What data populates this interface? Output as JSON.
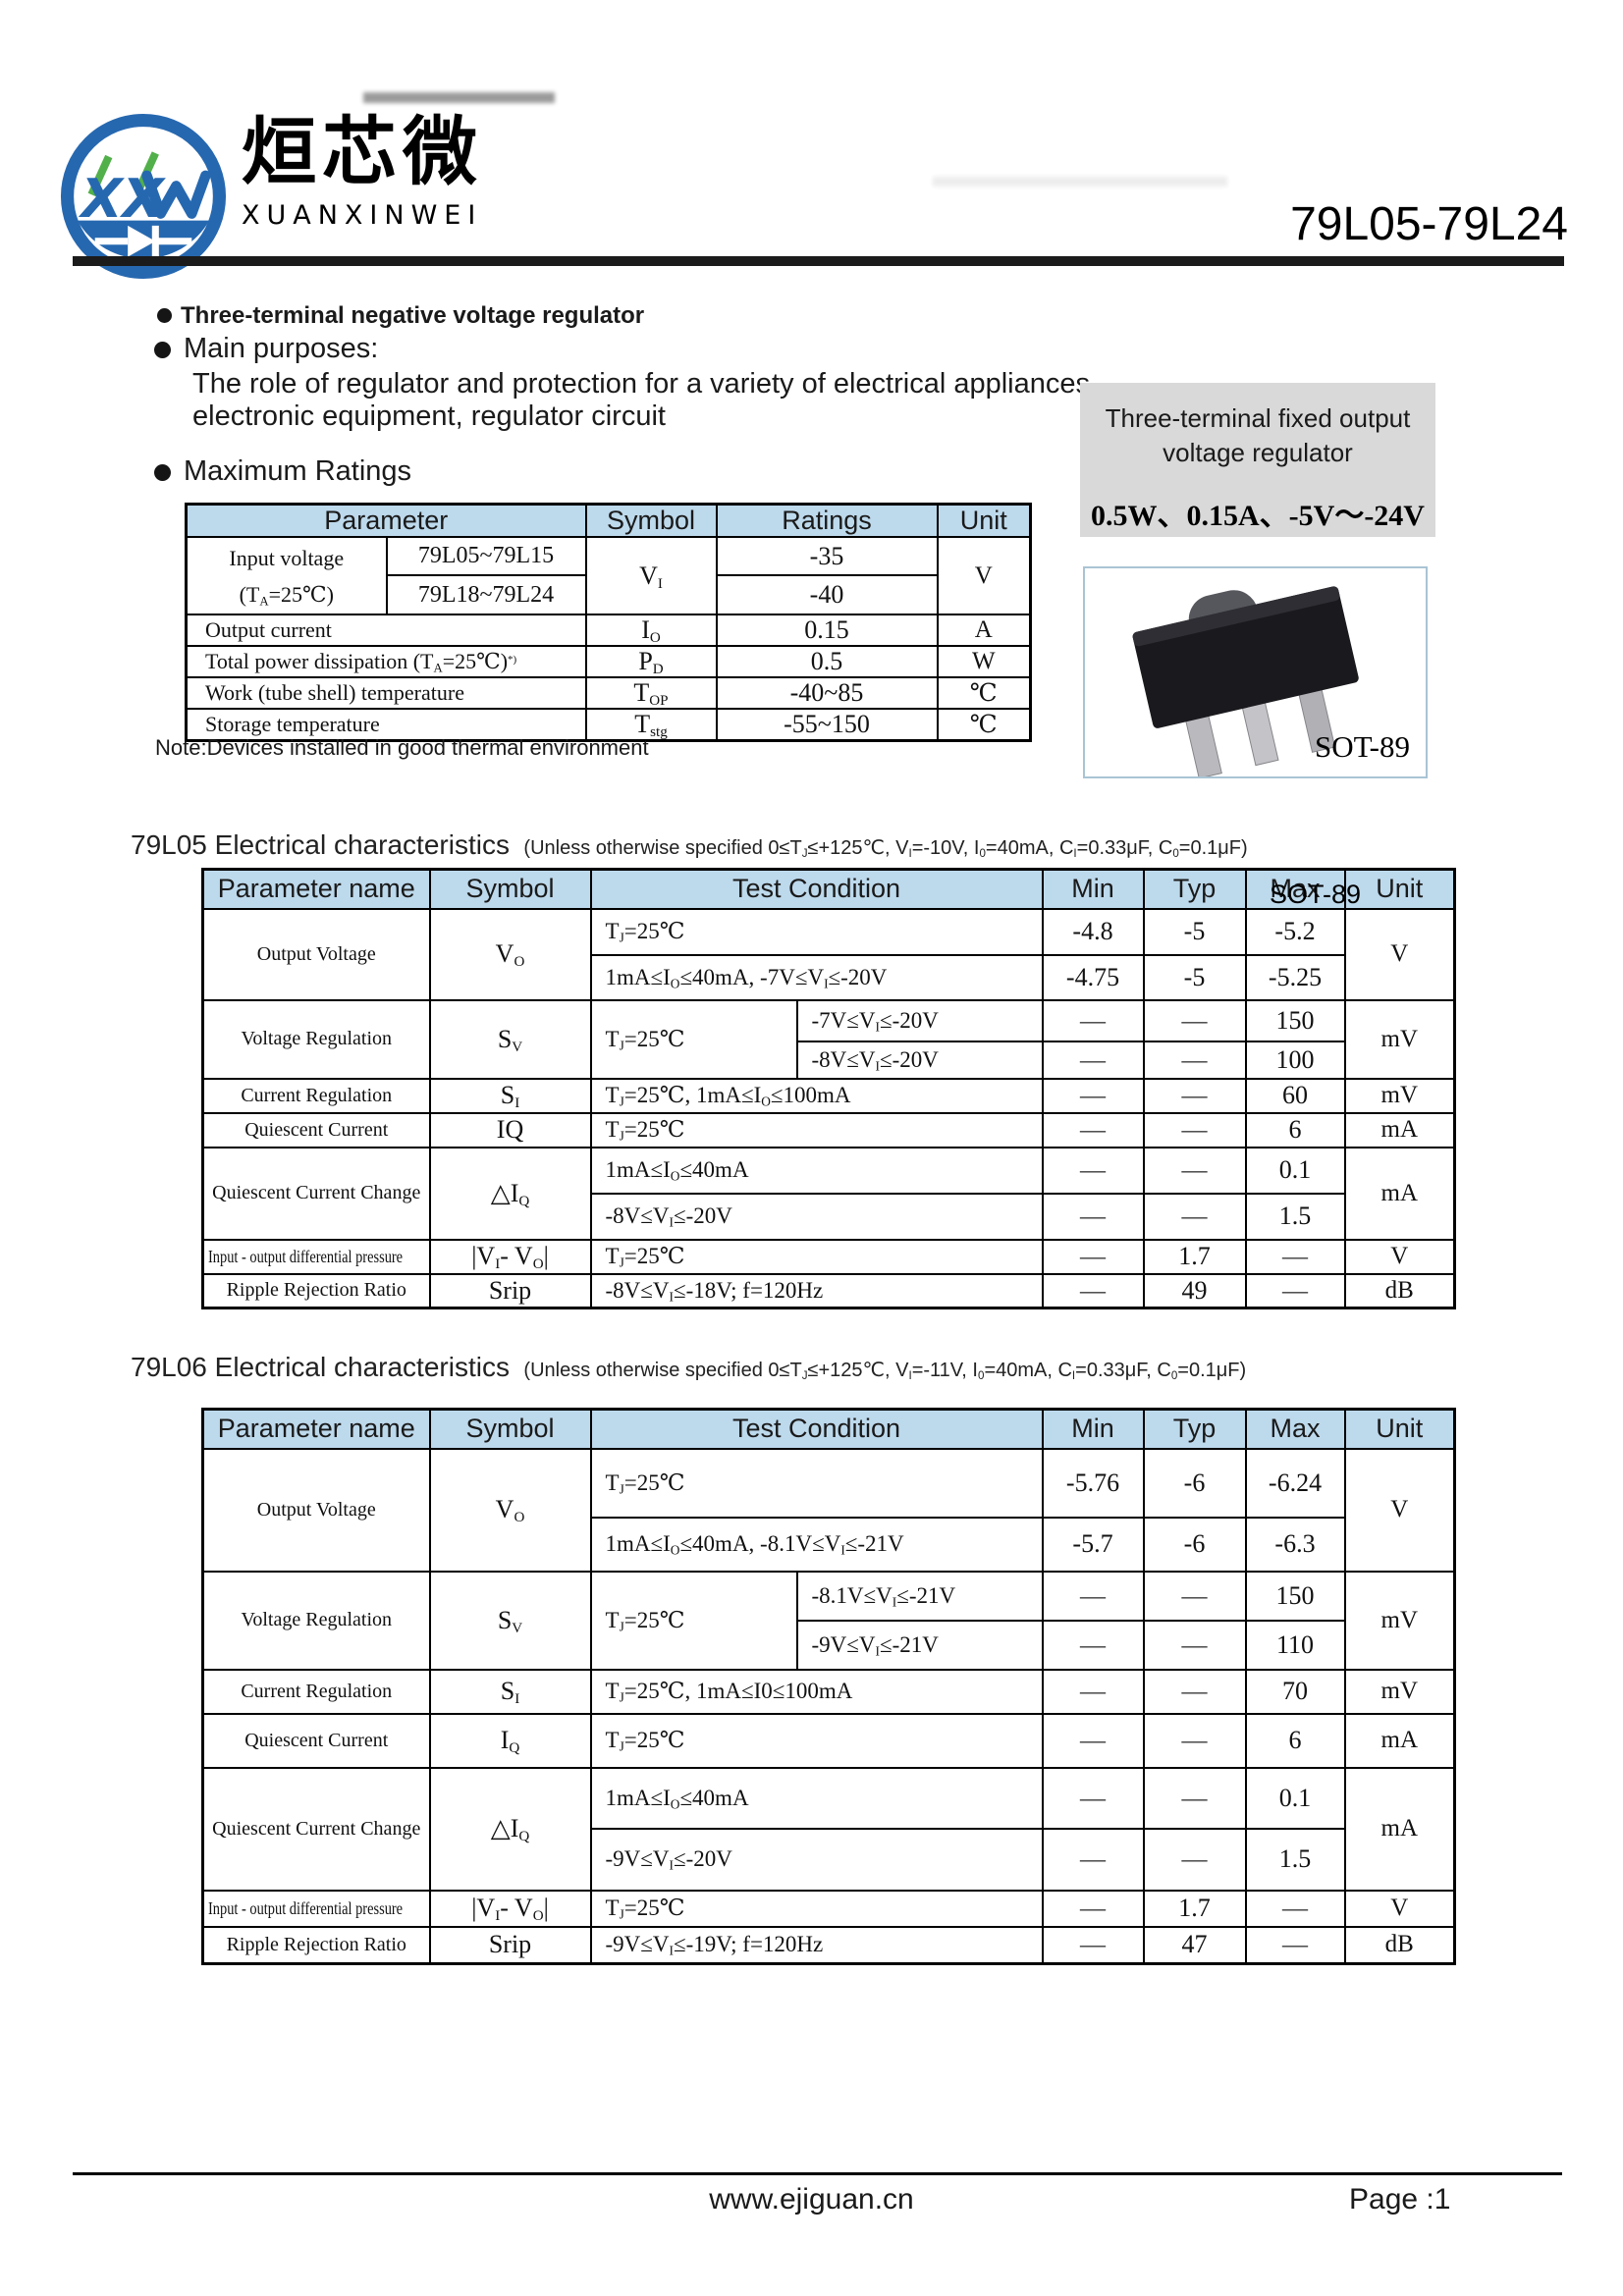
{
  "header": {
    "logo_text": "XXW",
    "brand_cn": "烜芯微",
    "brand_en": "XUANXINWEI",
    "part_number": "79L05-79L24"
  },
  "intro": {
    "feature": "Three-terminal negative voltage regulator",
    "purpose_title": "Main purposes:",
    "purpose_line1": "The role of regulator and protection for a variety of electrical appliances,",
    "purpose_line2": "electronic equipment, regulator circuit",
    "ratings_title": "Maximum Ratings"
  },
  "side_panel": {
    "line1": "Three-terminal fixed output",
    "line2": "voltage regulator",
    "specs": "0.5W、0.15A、-5V～-24V",
    "package": "SOT-89"
  },
  "colors": {
    "table_header_bg": "#bdd9ec",
    "panel_bg": "#d9d9d9",
    "logo_blue": "#2668b0",
    "logo_green": "#52b04a"
  },
  "max_ratings": {
    "headers": {
      "param": "Parameter",
      "symbol": "Symbol",
      "ratings": "Ratings",
      "unit": "Unit"
    },
    "input_voltage": {
      "name_line1": "Input voltage",
      "name_line2": [
        {
          "t": "(T"
        },
        {
          "s": "A"
        },
        {
          "t": "=25℃)"
        }
      ],
      "range1": "79L05~79L15",
      "range2": "79L18~79L24",
      "symbol": [
        {
          "t": "V"
        },
        {
          "s": "I"
        }
      ],
      "rating1": "-35",
      "rating2": "-40",
      "unit": "V"
    },
    "output_current": {
      "name": "Output current",
      "symbol": [
        {
          "t": "I"
        },
        {
          "s": "O"
        }
      ],
      "rating": "0.15",
      "unit": "A"
    },
    "power_dissipation": {
      "name": [
        {
          "t": "Total power dissipation (T"
        },
        {
          "s": "A"
        },
        {
          "t": "=25℃)"
        },
        {
          "p": "*)"
        }
      ],
      "symbol": [
        {
          "t": "P"
        },
        {
          "s": "D"
        }
      ],
      "rating": "0.5",
      "unit": "W"
    },
    "work_temperature": {
      "name": "Work (tube shell) temperature",
      "symbol": [
        {
          "t": "T"
        },
        {
          "s": "OP"
        }
      ],
      "rating": "-40~85",
      "unit": "℃"
    },
    "storage_temperature": {
      "name": "Storage temperature",
      "symbol": [
        {
          "t": "T"
        },
        {
          "s": "stg"
        }
      ],
      "rating": "-55~150",
      "unit": "℃"
    },
    "note": "Note:Devices installed in good thermal environment"
  },
  "t05": {
    "title": "79L05 Electrical characteristics",
    "condition": [
      {
        "t": "(Unless otherwise specified  0≤T"
      },
      {
        "s": "J"
      },
      {
        "t": "≤+125℃, V"
      },
      {
        "s": "I"
      },
      {
        "t": "=-10V, I"
      },
      {
        "s": "0"
      },
      {
        "t": "=40mA, C"
      },
      {
        "s": "I"
      },
      {
        "t": "=0.33μF, C"
      },
      {
        "s": "0"
      },
      {
        "t": "=0.1μF)"
      }
    ],
    "overlay": "SOT-89",
    "headers": {
      "param": "Parameter name",
      "symbol": "Symbol",
      "cond": "Test Condition",
      "min": "Min",
      "typ": "Typ",
      "max": "Max",
      "unit": "Unit"
    },
    "output_voltage": {
      "name": "Output Voltage",
      "symbol": [
        {
          "t": "V"
        },
        {
          "s": "O"
        }
      ],
      "r1": {
        "cond": [
          {
            "t": "T"
          },
          {
            "s": "J"
          },
          {
            "t": "=25℃"
          }
        ],
        "min": "-4.8",
        "typ": "-5",
        "max": "-5.2"
      },
      "r2": {
        "cond": [
          {
            "t": "1mA≤I"
          },
          {
            "s": "O"
          },
          {
            "t": "≤40mA, -7V≤V"
          },
          {
            "s": "I"
          },
          {
            "t": "≤-20V"
          }
        ],
        "min": "-4.75",
        "typ": "-5",
        "max": "-5.25"
      },
      "unit": "V"
    },
    "voltage_regulation": {
      "name": "Voltage Regulation",
      "symbol": [
        {
          "t": "S"
        },
        {
          "s": "V"
        }
      ],
      "cond_left": [
        {
          "t": "T"
        },
        {
          "s": "J"
        },
        {
          "t": "=25℃"
        }
      ],
      "r1": {
        "cond": [
          {
            "t": "-7V≤V"
          },
          {
            "s": "I"
          },
          {
            "t": "≤-20V"
          }
        ],
        "min": "—",
        "typ": "—",
        "max": "150"
      },
      "r2": {
        "cond": [
          {
            "t": "-8V≤V"
          },
          {
            "s": "I"
          },
          {
            "t": "≤-20V"
          }
        ],
        "min": "—",
        "typ": "—",
        "max": "100"
      },
      "unit": "mV"
    },
    "current_regulation": {
      "name": "Current Regulation",
      "symbol": [
        {
          "t": "S"
        },
        {
          "s": "I"
        }
      ],
      "cond": [
        {
          "t": "T"
        },
        {
          "s": "J"
        },
        {
          "t": "=25℃, 1mA≤I"
        },
        {
          "s": "O"
        },
        {
          "t": "≤100mA"
        }
      ],
      "min": "—",
      "typ": "—",
      "max": "60",
      "unit": "mV"
    },
    "quiescent_current": {
      "name": "Quiescent Current",
      "symbol": [
        {
          "t": "IQ"
        }
      ],
      "cond": [
        {
          "t": "T"
        },
        {
          "s": "J"
        },
        {
          "t": "=25℃"
        }
      ],
      "min": "—",
      "typ": "—",
      "max": "6",
      "unit": "mA"
    },
    "quiescent_current_change": {
      "name": "Quiescent Current Change",
      "symbol": [
        {
          "t": "△I"
        },
        {
          "s": "Q"
        }
      ],
      "r1": {
        "cond": [
          {
            "t": "1mA≤I"
          },
          {
            "s": "O"
          },
          {
            "t": "≤40mA"
          }
        ],
        "min": "—",
        "typ": "—",
        "max": "0.1"
      },
      "r2": {
        "cond": [
          {
            "t": "-8V≤V"
          },
          {
            "s": "I"
          },
          {
            "t": "≤-20V"
          }
        ],
        "min": "—",
        "typ": "—",
        "max": "1.5"
      },
      "unit": "mA"
    },
    "io_differential": {
      "name": "Input - output differential pressure",
      "symbol": [
        {
          "t": "|V"
        },
        {
          "s": "I"
        },
        {
          "t": "- V"
        },
        {
          "s": "O"
        },
        {
          "t": "|"
        }
      ],
      "cond": [
        {
          "t": "T"
        },
        {
          "s": "J"
        },
        {
          "t": "=25℃"
        }
      ],
      "min": "—",
      "typ": "1.7",
      "max": "—",
      "unit": "V"
    },
    "ripple": {
      "name": "Ripple Rejection Ratio",
      "symbol": [
        {
          "t": "Srip"
        }
      ],
      "cond": [
        {
          "t": "-8V≤V"
        },
        {
          "s": "I"
        },
        {
          "t": "≤-18V; f=120Hz"
        }
      ],
      "min": "—",
      "typ": "49",
      "max": "—",
      "unit": "dB"
    }
  },
  "t06": {
    "title": "79L06 Electrical characteristics",
    "condition": [
      {
        "t": "(Unless otherwise specified  0≤T"
      },
      {
        "s": "J"
      },
      {
        "t": "≤+125℃, V"
      },
      {
        "s": "I"
      },
      {
        "t": "=-11V, I"
      },
      {
        "s": "0"
      },
      {
        "t": "=40mA, C"
      },
      {
        "s": "I"
      },
      {
        "t": "=0.33μF, C"
      },
      {
        "s": "0"
      },
      {
        "t": "=0.1μF)"
      }
    ],
    "headers": {
      "param": "Parameter name",
      "symbol": "Symbol",
      "cond": "Test Condition",
      "min": "Min",
      "typ": "Typ",
      "max": "Max",
      "unit": "Unit"
    },
    "output_voltage": {
      "name": "Output Voltage",
      "symbol": [
        {
          "t": "V"
        },
        {
          "s": "O"
        }
      ],
      "r1": {
        "cond": [
          {
            "t": "T"
          },
          {
            "s": "J"
          },
          {
            "t": "=25℃"
          }
        ],
        "min": "-5.76",
        "typ": "-6",
        "max": "-6.24"
      },
      "r2": {
        "cond": [
          {
            "t": "1mA≤I"
          },
          {
            "s": "O"
          },
          {
            "t": "≤40mA, -8.1V≤V"
          },
          {
            "s": "I"
          },
          {
            "t": "≤-21V"
          }
        ],
        "min": "-5.7",
        "typ": "-6",
        "max": "-6.3"
      },
      "unit": "V"
    },
    "voltage_regulation": {
      "name": "Voltage Regulation",
      "symbol": [
        {
          "t": "S"
        },
        {
          "s": "V"
        }
      ],
      "cond_left": [
        {
          "t": "T"
        },
        {
          "s": "J"
        },
        {
          "t": "=25℃"
        }
      ],
      "r1": {
        "cond": [
          {
            "t": "-8.1V≤V"
          },
          {
            "s": "I"
          },
          {
            "t": "≤-21V"
          }
        ],
        "min": "—",
        "typ": "—",
        "max": "150"
      },
      "r2": {
        "cond": [
          {
            "t": "-9V≤V"
          },
          {
            "s": "I"
          },
          {
            "t": "≤-21V"
          }
        ],
        "min": "—",
        "typ": "—",
        "max": "110"
      },
      "unit": "mV"
    },
    "current_regulation": {
      "name": "Current Regulation",
      "symbol": [
        {
          "t": "S"
        },
        {
          "s": "I"
        }
      ],
      "cond": [
        {
          "t": "T"
        },
        {
          "s": "J"
        },
        {
          "t": "=25℃, 1mA≤I0≤100mA"
        }
      ],
      "min": "—",
      "typ": "—",
      "max": "70",
      "unit": "mV"
    },
    "quiescent_current": {
      "name": "Quiescent Current",
      "symbol": [
        {
          "t": "I"
        },
        {
          "s": "Q"
        }
      ],
      "cond": [
        {
          "t": "T"
        },
        {
          "s": "J"
        },
        {
          "t": "=25℃"
        }
      ],
      "min": "—",
      "typ": "—",
      "max": "6",
      "unit": "mA"
    },
    "quiescent_current_change": {
      "name": "Quiescent Current Change",
      "symbol": [
        {
          "t": "△I"
        },
        {
          "s": "Q"
        }
      ],
      "r1": {
        "cond": [
          {
            "t": "1mA≤I"
          },
          {
            "s": "O"
          },
          {
            "t": "≤40mA"
          }
        ],
        "min": "—",
        "typ": "—",
        "max": "0.1"
      },
      "r2": {
        "cond": [
          {
            "t": "-9V≤V"
          },
          {
            "s": "I"
          },
          {
            "t": "≤-20V"
          }
        ],
        "min": "—",
        "typ": "—",
        "max": "1.5"
      },
      "unit": "mA"
    },
    "io_differential": {
      "name": "Input - output differential pressure",
      "symbol": [
        {
          "t": "|V"
        },
        {
          "s": "I"
        },
        {
          "t": "- V"
        },
        {
          "s": "O"
        },
        {
          "t": "|"
        }
      ],
      "cond": [
        {
          "t": "T"
        },
        {
          "s": "J"
        },
        {
          "t": "=25℃"
        }
      ],
      "min": "—",
      "typ": "1.7",
      "max": "—",
      "unit": "V"
    },
    "ripple": {
      "name": "Ripple Rejection Ratio",
      "symbol": [
        {
          "t": "Srip"
        }
      ],
      "cond": [
        {
          "t": "-9V≤V"
        },
        {
          "s": "I"
        },
        {
          "t": "≤-19V; f=120Hz"
        }
      ],
      "min": "—",
      "typ": "47",
      "max": "—",
      "unit": "dB"
    }
  },
  "footer": {
    "website": "www.ejiguan.cn",
    "page": "Page :1"
  }
}
